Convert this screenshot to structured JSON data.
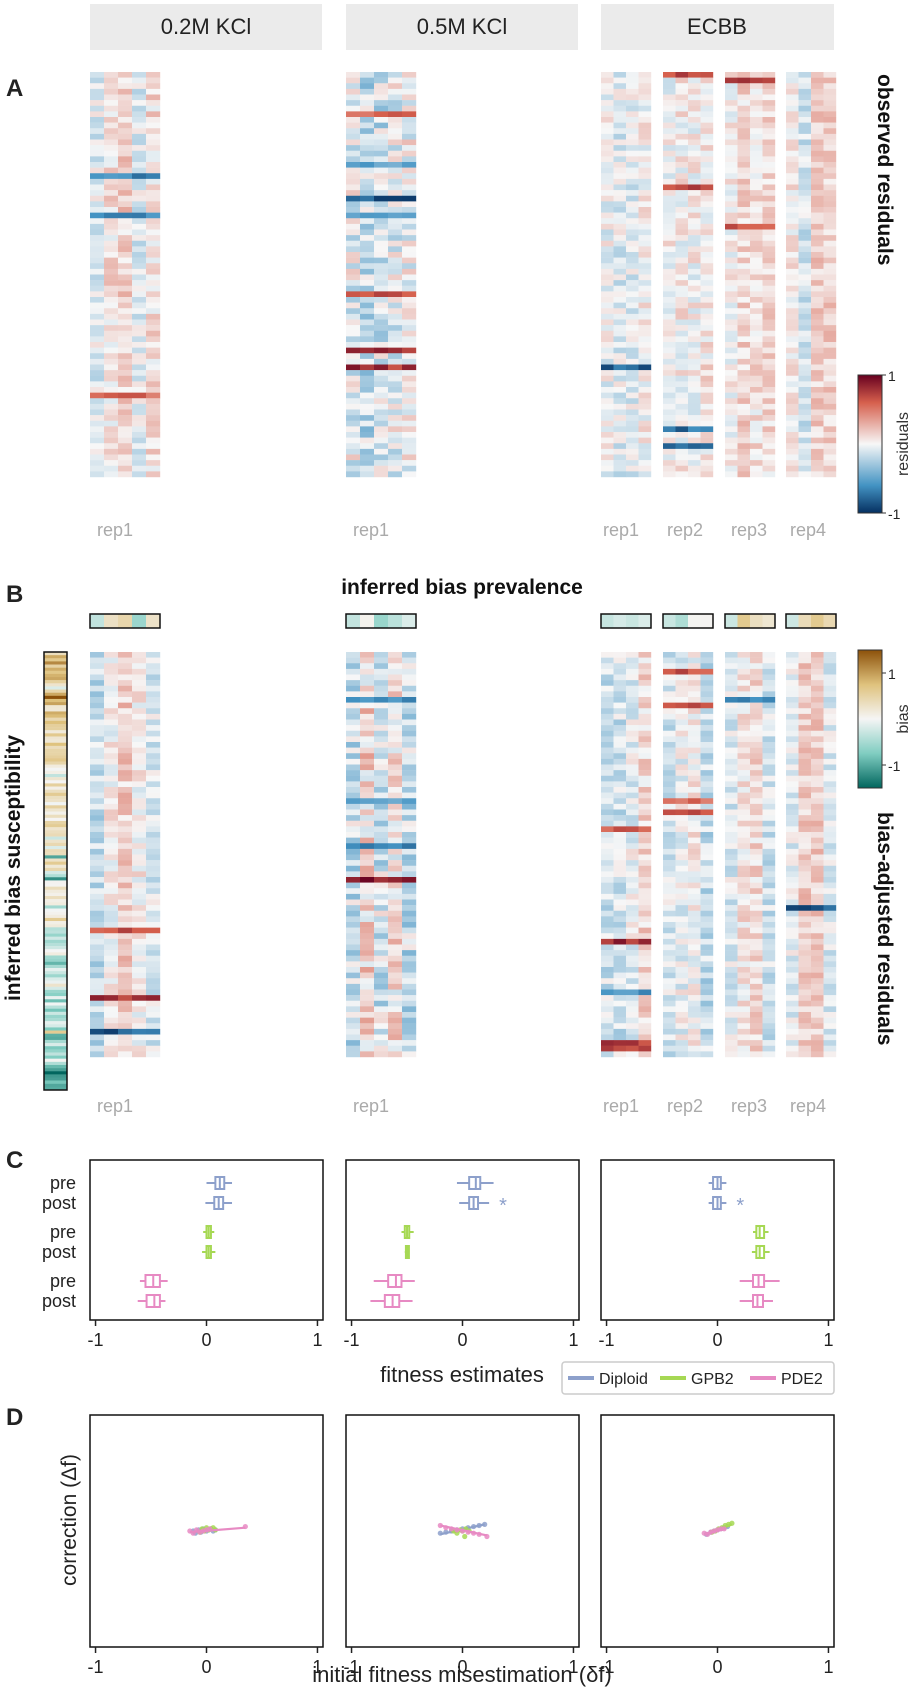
{
  "conditions": [
    "0.2M KCl",
    "0.5M KCl",
    "ECBB"
  ],
  "panel_letters": [
    "A",
    "B",
    "C",
    "D"
  ],
  "replicates": [
    [
      "rep1"
    ],
    [
      "rep1"
    ],
    [
      "rep1",
      "rep2",
      "rep3",
      "rep4"
    ]
  ],
  "panel_a": {
    "side_label": "observed residuals"
  },
  "panel_b": {
    "top_label": "inferred bias prevalence",
    "left_label": "inferred bias susceptibility",
    "right_label": "bias-adjusted residuals"
  },
  "colorbars": {
    "residuals": {
      "label": "residuals",
      "ticks": [
        "1",
        "-1"
      ],
      "range": [
        -1,
        1
      ],
      "low_color": "#053061",
      "mid_color": "#f7f7f7",
      "high_color": "#67001f"
    },
    "bias": {
      "label": "bias",
      "ticks": [
        "1",
        "-1"
      ],
      "range": [
        -1.5,
        1.5
      ],
      "low_color": "#01665e",
      "mid_color": "#f5f5f5",
      "high_color": "#8c510a"
    }
  },
  "series_colors": {
    "Diploid": "#8da0cb",
    "GPB2": "#a6d854",
    "PDE2": "#e78ac3"
  },
  "chart_data": [
    {
      "type": "boxplot",
      "panel": "C",
      "condition": "0.2M KCl",
      "xlabel": "",
      "xlim": [
        -1.05,
        1.05
      ],
      "xticks": [
        "-1",
        "0",
        "1"
      ],
      "row_labels": [
        "pre",
        "post",
        "pre",
        "post",
        "pre",
        "post"
      ],
      "rows": [
        {
          "series": "Diploid",
          "label": "pre",
          "median": 0.12,
          "q1": 0.08,
          "q3": 0.16,
          "whisker_low": 0.0,
          "whisker_high": 0.23,
          "marker": ""
        },
        {
          "series": "Diploid",
          "label": "post",
          "median": 0.11,
          "q1": 0.07,
          "q3": 0.15,
          "whisker_low": -0.01,
          "whisker_high": 0.23,
          "marker": ""
        },
        {
          "series": "GPB2",
          "label": "pre",
          "median": 0.02,
          "q1": 0.0,
          "q3": 0.04,
          "whisker_low": -0.03,
          "whisker_high": 0.07,
          "marker": ""
        },
        {
          "series": "GPB2",
          "label": "post",
          "median": 0.02,
          "q1": 0.0,
          "q3": 0.04,
          "whisker_low": -0.04,
          "whisker_high": 0.08,
          "marker": ""
        },
        {
          "series": "PDE2",
          "label": "pre",
          "median": -0.48,
          "q1": -0.55,
          "q3": -0.42,
          "whisker_low": -0.6,
          "whisker_high": -0.35,
          "marker": ""
        },
        {
          "series": "PDE2",
          "label": "post",
          "median": -0.47,
          "q1": -0.54,
          "q3": -0.42,
          "whisker_low": -0.62,
          "whisker_high": -0.37,
          "marker": ""
        }
      ]
    },
    {
      "type": "boxplot",
      "panel": "C",
      "condition": "0.5M KCl",
      "xlabel": "fitness estimates",
      "xlim": [
        -1.05,
        1.05
      ],
      "xticks": [
        "-1",
        "0",
        "1"
      ],
      "row_labels": [
        "pre",
        "post",
        "pre",
        "post",
        "pre",
        "post"
      ],
      "rows": [
        {
          "series": "Diploid",
          "label": "pre",
          "median": 0.12,
          "q1": 0.06,
          "q3": 0.16,
          "whisker_low": -0.05,
          "whisker_high": 0.28,
          "marker": ""
        },
        {
          "series": "Diploid",
          "label": "post",
          "median": 0.1,
          "q1": 0.06,
          "q3": 0.14,
          "whisker_low": -0.03,
          "whisker_high": 0.24,
          "marker": "*"
        },
        {
          "series": "GPB2",
          "label": "pre",
          "median": -0.5,
          "q1": -0.52,
          "q3": -0.48,
          "whisker_low": -0.55,
          "whisker_high": -0.44,
          "marker": ""
        },
        {
          "series": "GPB2",
          "label": "post",
          "median": -0.5,
          "q1": -0.51,
          "q3": -0.49,
          "whisker_low": -0.52,
          "whisker_high": -0.48,
          "marker": ""
        },
        {
          "series": "PDE2",
          "label": "pre",
          "median": -0.6,
          "q1": -0.67,
          "q3": -0.55,
          "whisker_low": -0.8,
          "whisker_high": -0.43,
          "marker": ""
        },
        {
          "series": "PDE2",
          "label": "post",
          "median": -0.63,
          "q1": -0.7,
          "q3": -0.57,
          "whisker_low": -0.83,
          "whisker_high": -0.45,
          "marker": ""
        }
      ]
    },
    {
      "type": "boxplot",
      "panel": "C",
      "condition": "ECBB",
      "xlabel": "",
      "xlim": [
        -1.05,
        1.05
      ],
      "xticks": [
        "-1",
        "0",
        "1"
      ],
      "row_labels": [
        "pre",
        "post",
        "pre",
        "post",
        "pre",
        "post"
      ],
      "rows": [
        {
          "series": "Diploid",
          "label": "pre",
          "median": 0.0,
          "q1": -0.04,
          "q3": 0.03,
          "whisker_low": -0.08,
          "whisker_high": 0.08,
          "marker": ""
        },
        {
          "series": "Diploid",
          "label": "post",
          "median": 0.0,
          "q1": -0.04,
          "q3": 0.03,
          "whisker_low": -0.08,
          "whisker_high": 0.08,
          "marker": "*"
        },
        {
          "series": "GPB2",
          "label": "pre",
          "median": 0.38,
          "q1": 0.35,
          "q3": 0.42,
          "whisker_low": 0.32,
          "whisker_high": 0.46,
          "marker": ""
        },
        {
          "series": "GPB2",
          "label": "post",
          "median": 0.38,
          "q1": 0.35,
          "q3": 0.42,
          "whisker_low": 0.31,
          "whisker_high": 0.47,
          "marker": ""
        },
        {
          "series": "PDE2",
          "label": "pre",
          "median": 0.37,
          "q1": 0.32,
          "q3": 0.42,
          "whisker_low": 0.2,
          "whisker_high": 0.56,
          "marker": ""
        },
        {
          "series": "PDE2",
          "label": "post",
          "median": 0.36,
          "q1": 0.32,
          "q3": 0.41,
          "whisker_low": 0.2,
          "whisker_high": 0.5,
          "marker": ""
        }
      ]
    },
    {
      "type": "legend",
      "panel": "C",
      "entries": [
        "Diploid",
        "GPB2",
        "PDE2"
      ],
      "placement": "below-right"
    },
    {
      "type": "scatter",
      "panel": "D",
      "condition": "0.2M KCl",
      "xlabel": "",
      "ylabel": "correction (Δf)",
      "xlim": [
        -1.05,
        1.05
      ],
      "ylim": [
        -1.05,
        1.05
      ],
      "xticks": [
        "-1",
        "0",
        "1"
      ],
      "series": [
        {
          "name": "Diploid",
          "points": [
            [
              -0.12,
              0.0
            ],
            [
              -0.1,
              -0.02
            ],
            [
              -0.07,
              0.01
            ],
            [
              -0.05,
              -0.01
            ],
            [
              -0.03,
              0.02
            ],
            [
              0.0,
              0.0
            ],
            [
              0.02,
              0.01
            ],
            [
              0.04,
              0.02
            ],
            [
              0.06,
              0.0
            ],
            [
              0.08,
              0.01
            ]
          ],
          "fit": [
            [
              -0.12,
              -0.01
            ],
            [
              0.08,
              0.02
            ]
          ]
        },
        {
          "name": "GPB2",
          "points": [
            [
              -0.06,
              -0.01
            ],
            [
              -0.04,
              0.02
            ],
            [
              -0.02,
              0.0
            ],
            [
              0.0,
              0.03
            ],
            [
              0.02,
              0.01
            ],
            [
              0.04,
              0.02
            ],
            [
              0.06,
              0.03
            ],
            [
              0.08,
              0.01
            ]
          ],
          "fit": [
            [
              -0.06,
              0.0
            ],
            [
              0.08,
              0.02
            ]
          ]
        },
        {
          "name": "PDE2",
          "points": [
            [
              -0.15,
              0.0
            ],
            [
              -0.12,
              -0.02
            ],
            [
              -0.09,
              0.01
            ],
            [
              -0.06,
              -0.01
            ],
            [
              -0.03,
              0.0
            ],
            [
              0.0,
              0.01
            ],
            [
              0.03,
              0.02
            ],
            [
              0.35,
              0.04
            ]
          ],
          "fit": [
            [
              -0.15,
              -0.01
            ],
            [
              0.35,
              0.03
            ]
          ]
        }
      ]
    },
    {
      "type": "scatter",
      "panel": "D",
      "condition": "0.5M KCl",
      "xlabel": "initial fitness misestimation (δf)",
      "ylabel": "",
      "xlim": [
        -1.05,
        1.05
      ],
      "ylim": [
        -1.05,
        1.05
      ],
      "xticks": [
        "-1",
        "0",
        "1"
      ],
      "series": [
        {
          "name": "Diploid",
          "points": [
            [
              -0.2,
              -0.02
            ],
            [
              -0.15,
              -0.01
            ],
            [
              -0.1,
              0.0
            ],
            [
              -0.05,
              0.01
            ],
            [
              0.0,
              0.02
            ],
            [
              0.05,
              0.03
            ],
            [
              0.1,
              0.04
            ],
            [
              0.15,
              0.05
            ],
            [
              0.2,
              0.06
            ]
          ],
          "fit": [
            [
              -0.2,
              -0.03
            ],
            [
              0.2,
              0.06
            ]
          ]
        },
        {
          "name": "GPB2",
          "points": [
            [
              -0.08,
              0.0
            ],
            [
              -0.05,
              -0.02
            ],
            [
              -0.02,
              0.01
            ],
            [
              0.0,
              0.0
            ],
            [
              0.03,
              0.02
            ],
            [
              0.06,
              0.0
            ],
            [
              0.02,
              -0.05
            ]
          ],
          "fit": [
            [
              -0.08,
              -0.01
            ],
            [
              0.06,
              0.01
            ]
          ]
        },
        {
          "name": "PDE2",
          "points": [
            [
              -0.2,
              0.05
            ],
            [
              -0.15,
              0.03
            ],
            [
              -0.1,
              0.02
            ],
            [
              -0.05,
              0.01
            ],
            [
              0.0,
              0.0
            ],
            [
              0.05,
              -0.01
            ],
            [
              0.1,
              -0.02
            ],
            [
              0.15,
              -0.03
            ],
            [
              0.22,
              -0.05
            ]
          ],
          "fit": [
            [
              -0.2,
              0.05
            ],
            [
              0.22,
              -0.04
            ]
          ]
        }
      ]
    },
    {
      "type": "scatter",
      "panel": "D",
      "condition": "ECBB",
      "xlabel": "",
      "ylabel": "",
      "xlim": [
        -1.05,
        1.05
      ],
      "ylim": [
        -1.05,
        1.05
      ],
      "xticks": [
        "-1",
        "0",
        "1"
      ],
      "series": [
        {
          "name": "Diploid",
          "points": [
            [
              -0.1,
              -0.03
            ],
            [
              -0.06,
              -0.01
            ],
            [
              -0.03,
              0.0
            ],
            [
              0.0,
              0.01
            ],
            [
              0.03,
              0.02
            ],
            [
              0.06,
              0.03
            ],
            [
              0.09,
              0.04
            ]
          ],
          "fit": [
            [
              -0.1,
              -0.03
            ],
            [
              0.09,
              0.04
            ]
          ]
        },
        {
          "name": "GPB2",
          "points": [
            [
              -0.05,
              -0.01
            ],
            [
              -0.02,
              0.0
            ],
            [
              0.01,
              0.02
            ],
            [
              0.04,
              0.03
            ],
            [
              0.07,
              0.05
            ],
            [
              0.1,
              0.06
            ],
            [
              0.13,
              0.07
            ]
          ],
          "fit": [
            [
              -0.05,
              -0.01
            ],
            [
              0.13,
              0.06
            ]
          ]
        },
        {
          "name": "PDE2",
          "points": [
            [
              -0.12,
              -0.02
            ],
            [
              -0.09,
              -0.03
            ],
            [
              -0.06,
              -0.01
            ],
            [
              -0.03,
              0.0
            ],
            [
              0.0,
              0.01
            ],
            [
              0.03,
              0.02
            ],
            [
              0.06,
              0.02
            ]
          ],
          "fit": [
            [
              -0.12,
              -0.03
            ],
            [
              0.06,
              0.02
            ]
          ]
        }
      ]
    }
  ]
}
